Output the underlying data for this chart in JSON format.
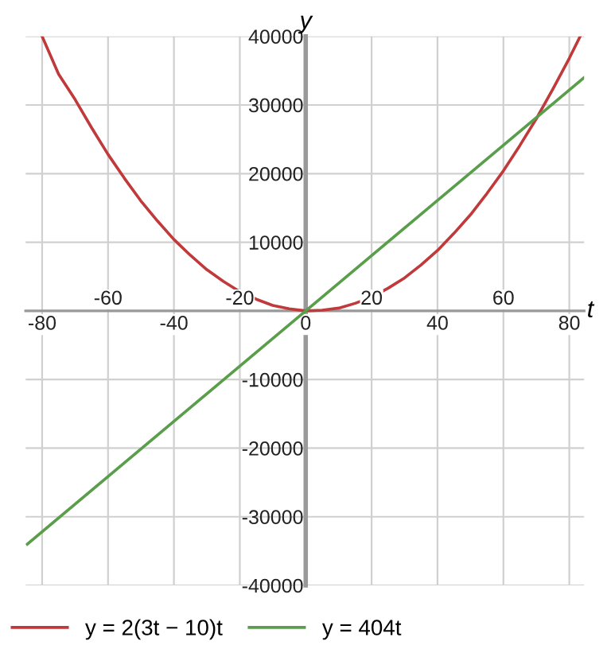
{
  "chart_data": {
    "type": "line",
    "xlabel": "t",
    "ylabel": "y",
    "xlim": [
      -85,
      84.5
    ],
    "ylim": [
      -40000,
      40000
    ],
    "xticks": [
      -80,
      -40,
      0,
      40,
      80
    ],
    "x2lim": [
      -85,
      84.5
    ],
    "x2ticks": [
      -60,
      -20,
      20,
      60
    ],
    "yticks": [
      -40000,
      -30000,
      -20000,
      -10000,
      10000,
      20000,
      30000,
      40000
    ],
    "grid": true,
    "legend": "bottom",
    "marker": "none",
    "line_style": "solid",
    "series": [
      {
        "name": "y = 2(3t − 10)t",
        "color": "#c0393b",
        "x": [
          -80,
          -75,
          -70,
          -65,
          -60,
          -55,
          -50,
          -45,
          -40,
          -35,
          -30,
          -25,
          -20,
          -15,
          -10,
          -5,
          0,
          5,
          10,
          15,
          20,
          25,
          30,
          35,
          40,
          45,
          50,
          55,
          60,
          65,
          70,
          75,
          80,
          83.3
        ],
        "values": [
          40000,
          34500,
          30800,
          26700,
          22800,
          19300,
          16000,
          13100,
          10400,
          8100,
          6000,
          4300,
          2800,
          1700,
          800,
          300,
          0,
          100,
          400,
          1100,
          2000,
          3300,
          4800,
          6700,
          8800,
          11300,
          14000,
          17100,
          20400,
          24100,
          28000,
          32300,
          36800,
          40000
        ]
      },
      {
        "name": "y = 404t",
        "color": "#5a9e4b",
        "x": [
          -84.5,
          0,
          84.5
        ],
        "values": [
          -34000,
          0,
          34000
        ]
      }
    ]
  }
}
